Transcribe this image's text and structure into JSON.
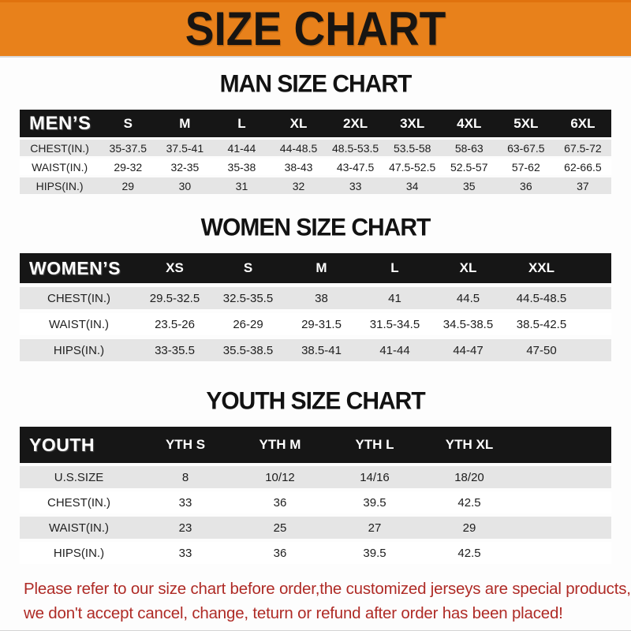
{
  "banner": {
    "title": "SIZE CHART"
  },
  "colors": {
    "banner_bg": "#e8811b",
    "table_header_bg": "#161616",
    "row_stripe": "#e5e5e5",
    "footer_text": "#af2b26"
  },
  "sections": [
    {
      "id": "men",
      "title": "MAN SIZE CHART",
      "corner_label": "MEN’S",
      "columns": [
        "S",
        "M",
        "L",
        "XL",
        "2XL",
        "3XL",
        "4XL",
        "5XL",
        "6XL"
      ],
      "rows": [
        {
          "label": "CHEST(IN.)",
          "values": [
            "35-37.5",
            "37.5-41",
            "41-44",
            "44-48.5",
            "48.5-53.5",
            "53.5-58",
            "58-63",
            "63-67.5",
            "67.5-72"
          ]
        },
        {
          "label": "WAIST(IN.)",
          "values": [
            "29-32",
            "32-35",
            "35-38",
            "38-43",
            "43-47.5",
            "47.5-52.5",
            "52.5-57",
            "57-62",
            "62-66.5"
          ]
        },
        {
          "label": "HIPS(IN.)",
          "values": [
            "29",
            "30",
            "31",
            "32",
            "33",
            "34",
            "35",
            "36",
            "37"
          ]
        }
      ]
    },
    {
      "id": "women",
      "title": "WOMEN SIZE CHART",
      "corner_label": "WOMEN’S",
      "columns": [
        "XS",
        "S",
        "M",
        "L",
        "XL",
        "XXL"
      ],
      "rows": [
        {
          "label": "CHEST(IN.)",
          "values": [
            "29.5-32.5",
            "32.5-35.5",
            "38",
            "41",
            "44.5",
            "44.5-48.5"
          ]
        },
        {
          "label": "WAIST(IN.)",
          "values": [
            "23.5-26",
            "26-29",
            "29-31.5",
            "31.5-34.5",
            "34.5-38.5",
            "38.5-42.5"
          ]
        },
        {
          "label": "HIPS(IN.)",
          "values": [
            "33-35.5",
            "35.5-38.5",
            "38.5-41",
            "41-44",
            "44-47",
            "47-50"
          ]
        }
      ]
    },
    {
      "id": "youth",
      "title": "YOUTH SIZE CHART",
      "corner_label": "YOUTH",
      "columns": [
        "YTH S",
        "YTH M",
        "YTH L",
        "YTH XL"
      ],
      "rows": [
        {
          "label": "U.S.SIZE",
          "values": [
            "8",
            "10/12",
            "14/16",
            "18/20"
          ]
        },
        {
          "label": "CHEST(IN.)",
          "values": [
            "33",
            "36",
            "39.5",
            "42.5"
          ]
        },
        {
          "label": "WAIST(IN.)",
          "values": [
            "23",
            "25",
            "27",
            "29"
          ]
        },
        {
          "label": "HIPS(IN.)",
          "values": [
            "33",
            "36",
            "39.5",
            "42.5"
          ]
        }
      ]
    }
  ],
  "footer": {
    "line1": "Please refer to our size chart before order,the customized jerseys are special products,",
    "line2": "we don't accept cancel, change, teturn or refund after order has been placed!"
  }
}
